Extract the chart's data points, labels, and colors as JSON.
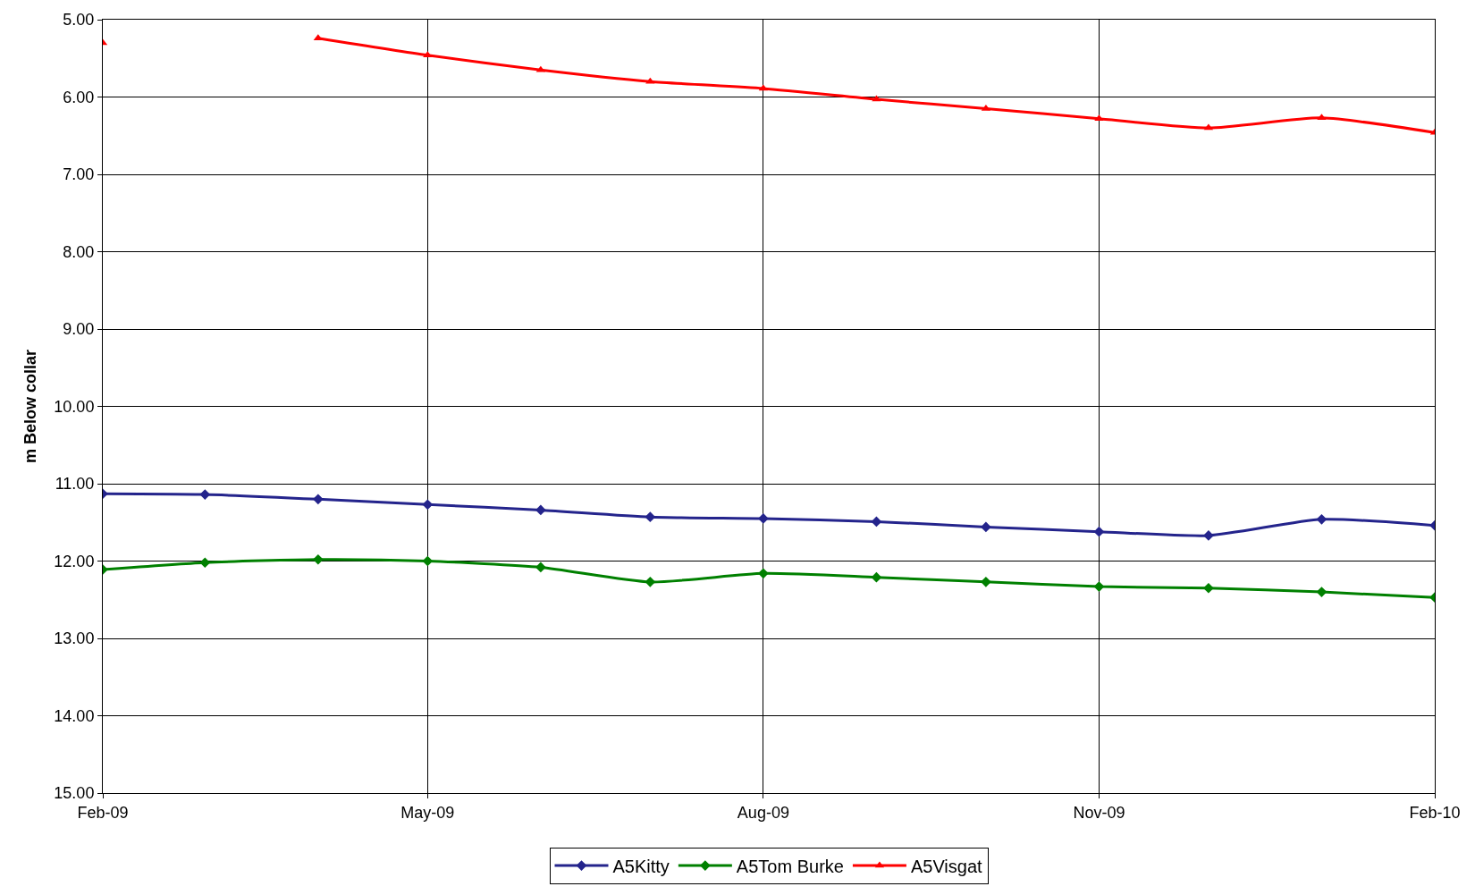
{
  "chart_data": {
    "type": "line",
    "ylabel": "m Below collar",
    "x": [
      "2009-02-01",
      "2009-03-01",
      "2009-04-01",
      "2009-05-01",
      "2009-06-01",
      "2009-07-01",
      "2009-08-01",
      "2009-09-01",
      "2009-10-01",
      "2009-11-01",
      "2009-12-01",
      "2010-01-01",
      "2010-02-01"
    ],
    "series": [
      {
        "name": "A5Kitty",
        "color": "#24248c",
        "marker": "diamond",
        "values": [
          11.13,
          11.14,
          11.2,
          11.27,
          11.34,
          11.43,
          11.45,
          11.49,
          11.56,
          11.62,
          11.67,
          11.46,
          11.54
        ]
      },
      {
        "name": "A5Tom Burke",
        "color": "#008000",
        "marker": "diamond",
        "values": [
          12.11,
          12.02,
          11.98,
          12.0,
          12.08,
          12.27,
          12.16,
          12.21,
          12.27,
          12.33,
          12.35,
          12.4,
          12.47
        ]
      },
      {
        "name": "A5Visgat",
        "color": "#ff0000",
        "marker": "triangle",
        "values": [
          5.3,
          null,
          5.24,
          5.46,
          5.65,
          5.8,
          5.89,
          6.03,
          6.15,
          6.28,
          6.4,
          6.27,
          6.46
        ]
      }
    ],
    "ylim": [
      15,
      5
    ],
    "yticks": [
      {
        "value": 5,
        "label": "5.00"
      },
      {
        "value": 6,
        "label": "6.00"
      },
      {
        "value": 7,
        "label": "7.00"
      },
      {
        "value": 8,
        "label": "8.00"
      },
      {
        "value": 9,
        "label": "9.00"
      },
      {
        "value": 10,
        "label": "10.00"
      },
      {
        "value": 11,
        "label": "11.00"
      },
      {
        "value": 12,
        "label": "12.00"
      },
      {
        "value": 13,
        "label": "13.00"
      },
      {
        "value": 14,
        "label": "14.00"
      },
      {
        "value": 15,
        "label": "15.00"
      }
    ],
    "xlim": [
      "2009-02-01",
      "2010-02-01"
    ],
    "xticks": [
      {
        "value": "2009-02-01",
        "label": "Feb-09"
      },
      {
        "value": "2009-05-01",
        "label": "May-09"
      },
      {
        "value": "2009-08-01",
        "label": "Aug-09"
      },
      {
        "value": "2009-11-01",
        "label": "Nov-09"
      },
      {
        "value": "2010-02-01",
        "label": "Feb-10"
      }
    ],
    "grid": true,
    "legend": "bottom",
    "line_style": "solid"
  }
}
